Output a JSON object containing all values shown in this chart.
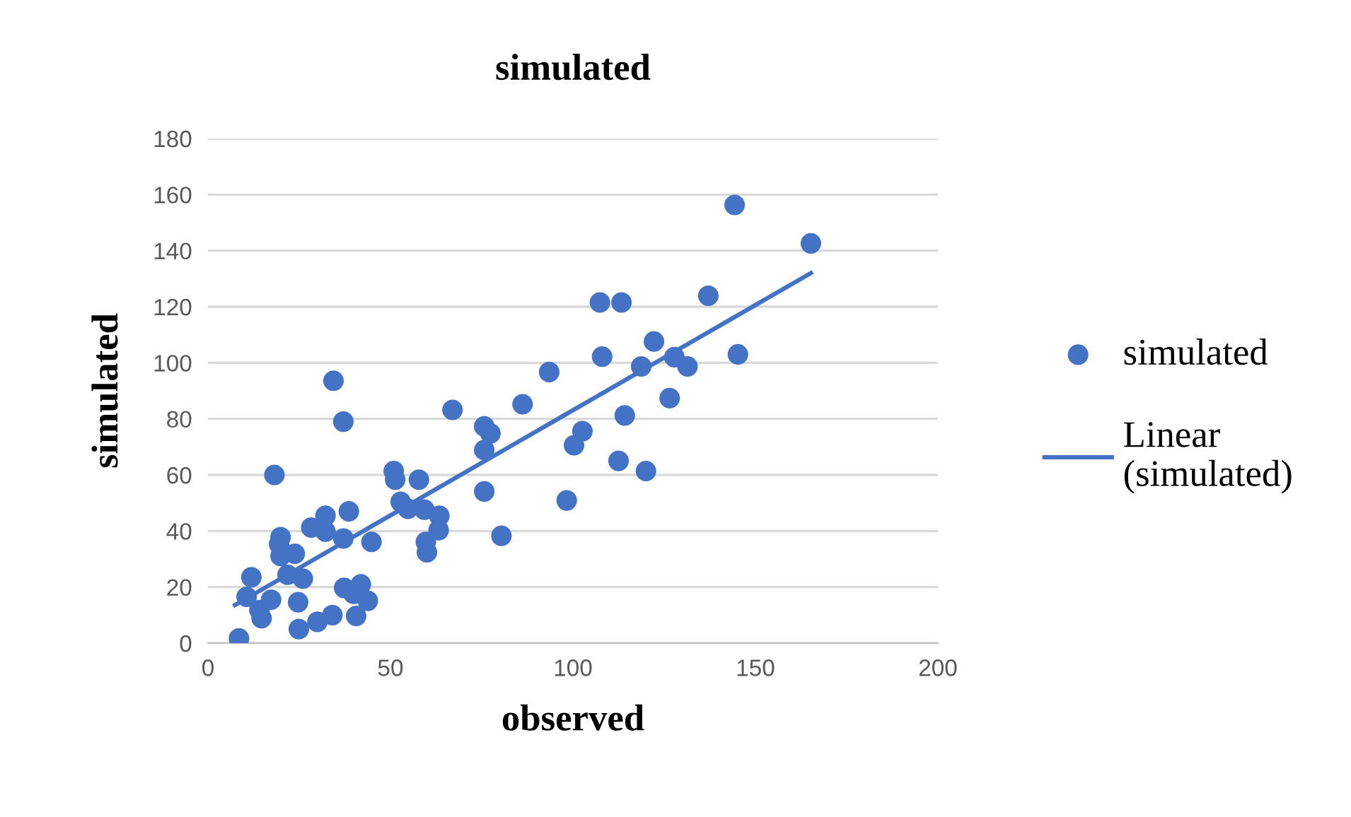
{
  "chart_data": {
    "type": "scatter",
    "title": "simulated",
    "xlabel": "observed",
    "ylabel": "simulated",
    "xlim": [
      0,
      200
    ],
    "xticks": [
      0,
      50,
      100,
      150,
      200
    ],
    "ylim": [
      0,
      180
    ],
    "yticks": [
      0,
      20,
      40,
      60,
      80,
      100,
      120,
      140,
      160,
      180
    ],
    "grid": "y",
    "legend": "right",
    "marker": "circle",
    "series": [
      {
        "name": "simulated",
        "color": "#4472c4",
        "x": [
          8.5,
          11.9,
          10.6,
          14.7,
          14.1,
          17.3,
          18.2,
          19.9,
          19.5,
          19.9,
          23.8,
          21.8,
          26.0,
          24.7,
          24.9,
          30.0,
          34.1,
          28.3,
          32.2,
          32.2,
          34.4,
          37.1,
          38.6,
          37.1,
          44.8,
          37.3,
          41.9,
          43.8,
          40.6,
          39.9,
          50.9,
          51.3,
          57.8,
          52.8,
          54.8,
          59.3,
          63.4,
          63.2,
          59.7,
          60.0,
          67.0,
          75.7,
          77.4,
          75.7,
          75.7,
          80.4,
          86.2,
          93.5,
          98.3,
          100.3,
          102.6,
          107.4,
          108.0,
          113.3,
          112.5,
          114.2,
          120.0,
          118.7,
          122.2,
          126.5,
          127.8,
          131.4,
          137.1,
          144.3,
          145.2,
          165.2
        ],
        "values": [
          1.7,
          23.5,
          16.5,
          8.9,
          11.8,
          15.5,
          60.0,
          37.8,
          35.3,
          31.1,
          31.9,
          24.4,
          23.0,
          14.6,
          5.0,
          7.6,
          10.0,
          41.2,
          45.4,
          39.8,
          93.6,
          79.0,
          47.0,
          37.3,
          36.1,
          19.7,
          21.0,
          15.1,
          9.7,
          17.6,
          61.4,
          58.3,
          58.3,
          50.4,
          47.9,
          47.6,
          45.4,
          40.3,
          36.1,
          32.4,
          83.2,
          77.3,
          74.8,
          68.9,
          54.1,
          38.3,
          85.2,
          96.7,
          50.9,
          70.6,
          75.6,
          121.5,
          102.2,
          121.5,
          65.0,
          81.2,
          61.4,
          98.7,
          107.6,
          87.4,
          102.0,
          98.7,
          123.9,
          156.3,
          103.0,
          142.6
        ]
      },
      {
        "name": "Linear\n(simulated)",
        "type": "line",
        "color": "#4472c4",
        "marker": "none",
        "line_style": "solid",
        "x": [
          7.4,
          165.2
        ],
        "values": [
          13.6,
          132.0
        ]
      }
    ]
  }
}
